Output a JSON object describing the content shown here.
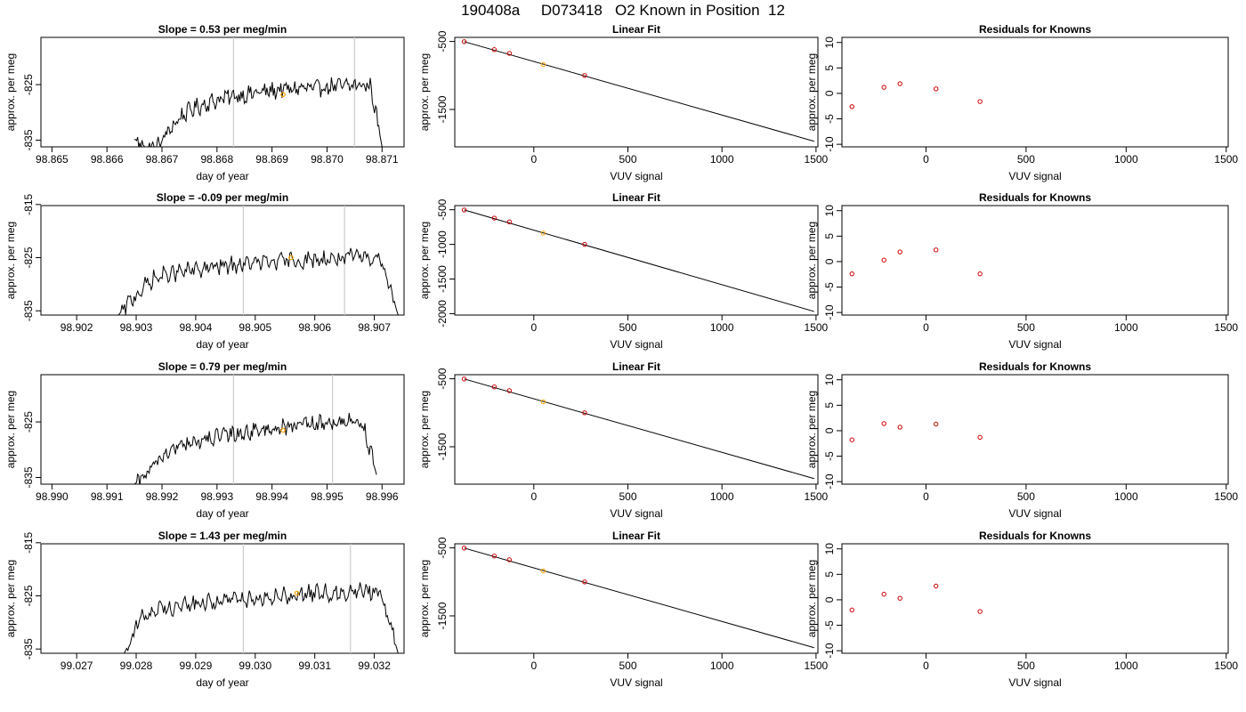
{
  "title": "190408a     D073418   O2 Known in Position  12",
  "colors": {
    "trace": "#000000",
    "cursor": "#cccccc",
    "highlight": "#ffa500",
    "points": "#cc0000",
    "fit": "#000000"
  },
  "labels": {
    "day_xlabel": "day of year",
    "ylabel": "approx. per meg",
    "vuv_xlabel": "VUV signal",
    "fit_title": "Linear Fit",
    "resid_title": "Residuals for Knowns",
    "slope_prefix": "Slope =  ",
    "slope_suffix": "  per meg/min"
  },
  "chart_data": [
    {
      "type": "line",
      "row": 0,
      "slope": "0.53",
      "xlim": [
        98.8648,
        98.8714
      ],
      "ylim": [
        -836.2,
        -816.5
      ],
      "xticks": [
        "98.865",
        "98.866",
        "98.867",
        "98.868",
        "98.869",
        "98.870",
        "98.871"
      ],
      "yticks": [
        "-825",
        "-835"
      ],
      "vlines": [
        98.8683,
        98.8705
      ],
      "highlight": {
        "x": 98.8692,
        "y": -826.8
      },
      "x_start": 98.8665,
      "x_end": 98.871,
      "y_profile": [
        -834.8,
        -836.2,
        -836.2,
        -833.5,
        -831.0,
        -829.5,
        -828.7,
        -828.0,
        -827.4,
        -827.0,
        -826.8,
        -826.4,
        -826.2,
        -825.9,
        -825.8,
        -825.6,
        -825.7,
        -825.4,
        -825.3,
        -825.2,
        -825.1,
        -825.3,
        -836.2
      ],
      "jitter": 1.2
    },
    {
      "type": "scatter",
      "row": 0,
      "kind": "fit",
      "xlim": [
        -420,
        1510
      ],
      "ylim": [
        -2050,
        -440
      ],
      "xticks": [
        0,
        500,
        1000,
        1500
      ],
      "yticks": [
        -500,
        -1500
      ],
      "x": [
        -370,
        -210,
        -130,
        50,
        270
      ],
      "y": [
        -503,
        -620,
        -675,
        -838,
        -1000
      ],
      "highlight_index": 3,
      "fit_line": {
        "x": [
          -370,
          1490
        ],
        "y": [
          -503,
          -1968
        ]
      }
    },
    {
      "type": "scatter",
      "row": 0,
      "kind": "residual",
      "xlim": [
        -420,
        1510
      ],
      "ylim": [
        -10.5,
        11
      ],
      "xticks": [
        0,
        500,
        1000,
        1500
      ],
      "yticks": [
        10,
        5,
        0,
        -5,
        -10
      ],
      "x": [
        -370,
        -210,
        -130,
        50,
        270
      ],
      "y": [
        -2.6,
        1.2,
        1.9,
        0.9,
        -1.6
      ]
    },
    {
      "type": "line",
      "row": 1,
      "slope": "-0.09",
      "xlim": [
        98.9014,
        98.9075
      ],
      "ylim": [
        -835.8,
        -815.2
      ],
      "xticks": [
        "98.902",
        "98.903",
        "98.904",
        "98.905",
        "98.906",
        "98.907"
      ],
      "yticks": [
        "-815",
        "-825",
        "-835"
      ],
      "vlines": [
        98.9048,
        98.9065
      ],
      "highlight": {
        "x": 98.9056,
        "y": -825.0
      },
      "x_start": 98.9027,
      "x_end": 98.9074,
      "y_profile": [
        -835.8,
        -832.0,
        -829.0,
        -828.0,
        -827.5,
        -827.0,
        -826.6,
        -826.3,
        -826.0,
        -825.8,
        -825.6,
        -825.5,
        -825.2,
        -825.0,
        -824.9,
        -824.8,
        -835.8
      ],
      "jitter": 1.3
    },
    {
      "type": "scatter",
      "row": 1,
      "kind": "fit",
      "xlim": [
        -420,
        1510
      ],
      "ylim": [
        -2020,
        -440
      ],
      "xticks": [
        0,
        500,
        1000,
        1500
      ],
      "yticks": [
        -500,
        -1000,
        -1500,
        -2000
      ],
      "x": [
        -370,
        -210,
        -130,
        50,
        270
      ],
      "y": [
        -503,
        -620,
        -675,
        -838,
        -1000
      ],
      "highlight_index": 3,
      "fit_line": {
        "x": [
          -370,
          1490
        ],
        "y": [
          -503,
          -1968
        ]
      }
    },
    {
      "type": "scatter",
      "row": 1,
      "kind": "residual",
      "xlim": [
        -420,
        1510
      ],
      "ylim": [
        -10.5,
        11
      ],
      "xticks": [
        0,
        500,
        1000,
        1500
      ],
      "yticks": [
        10,
        5,
        0,
        -5,
        -10
      ],
      "x": [
        -370,
        -210,
        -130,
        50,
        270
      ],
      "y": [
        -2.4,
        0.3,
        1.9,
        2.3,
        -2.4
      ]
    },
    {
      "type": "line",
      "row": 2,
      "slope": "0.79",
      "xlim": [
        98.9898,
        98.9964
      ],
      "ylim": [
        -836.2,
        -816.5
      ],
      "xticks": [
        "98.990",
        "98.991",
        "98.992",
        "98.993",
        "98.994",
        "98.995",
        "98.996"
      ],
      "yticks": [
        "-825",
        "-835"
      ],
      "vlines": [
        98.9933,
        98.9951
      ],
      "highlight": {
        "x": 98.9942,
        "y": -826.5
      },
      "x_start": 98.9915,
      "x_end": 98.9959,
      "y_profile": [
        -836.2,
        -834.0,
        -831.0,
        -829.5,
        -828.8,
        -828.2,
        -827.6,
        -827.2,
        -826.8,
        -826.4,
        -826.1,
        -825.8,
        -825.6,
        -825.4,
        -825.1,
        -824.8,
        -825.0,
        -834.5
      ],
      "jitter": 1.2
    },
    {
      "type": "scatter",
      "row": 2,
      "kind": "fit",
      "xlim": [
        -420,
        1510
      ],
      "ylim": [
        -2050,
        -440
      ],
      "xticks": [
        0,
        500,
        1000,
        1500
      ],
      "yticks": [
        -500,
        -1500
      ],
      "x": [
        -370,
        -210,
        -130,
        50,
        270
      ],
      "y": [
        -503,
        -620,
        -675,
        -838,
        -1000
      ],
      "highlight_index": 3,
      "fit_line": {
        "x": [
          -370,
          1490
        ],
        "y": [
          -503,
          -1968
        ]
      }
    },
    {
      "type": "scatter",
      "row": 2,
      "kind": "residual",
      "xlim": [
        -420,
        1510
      ],
      "ylim": [
        -10.5,
        11
      ],
      "xticks": [
        0,
        500,
        1000,
        1500
      ],
      "yticks": [
        10,
        5,
        0,
        -5,
        -10
      ],
      "x": [
        -370,
        -210,
        -130,
        50,
        270
      ],
      "y": [
        -1.8,
        1.4,
        0.7,
        1.3,
        -1.3
      ]
    },
    {
      "type": "line",
      "row": 3,
      "slope": "1.43",
      "xlim": [
        99.0264,
        99.0325
      ],
      "ylim": [
        -835.8,
        -815.2
      ],
      "xticks": [
        "99.027",
        "99.028",
        "99.029",
        "99.030",
        "99.031",
        "99.032"
      ],
      "yticks": [
        "-815",
        "-825",
        "-835"
      ],
      "vlines": [
        99.0298,
        99.0316
      ],
      "highlight": {
        "x": 99.0307,
        "y": -824.5
      },
      "x_start": 99.0278,
      "x_end": 99.0324,
      "y_profile": [
        -835.8,
        -829.0,
        -827.5,
        -827.0,
        -826.6,
        -826.2,
        -825.8,
        -825.5,
        -825.2,
        -825.0,
        -824.8,
        -824.6,
        -824.4,
        -824.2,
        -824.0,
        -824.2,
        -835.8
      ],
      "jitter": 1.3
    },
    {
      "type": "scatter",
      "row": 3,
      "kind": "fit",
      "xlim": [
        -420,
        1510
      ],
      "ylim": [
        -2050,
        -440
      ],
      "xticks": [
        0,
        500,
        1000,
        1500
      ],
      "yticks": [
        -500,
        -1500
      ],
      "x": [
        -370,
        -210,
        -130,
        50,
        270
      ],
      "y": [
        -503,
        -620,
        -675,
        -838,
        -1000
      ],
      "highlight_index": 3,
      "fit_line": {
        "x": [
          -370,
          1490
        ],
        "y": [
          -503,
          -1968
        ]
      }
    },
    {
      "type": "scatter",
      "row": 3,
      "kind": "residual",
      "xlim": [
        -420,
        1510
      ],
      "ylim": [
        -10.5,
        11
      ],
      "xticks": [
        0,
        500,
        1000,
        1500
      ],
      "yticks": [
        10,
        5,
        0,
        -5,
        -10
      ],
      "x": [
        -370,
        -210,
        -130,
        50,
        270
      ],
      "y": [
        -2.0,
        1.1,
        0.3,
        2.7,
        -2.3
      ]
    }
  ]
}
